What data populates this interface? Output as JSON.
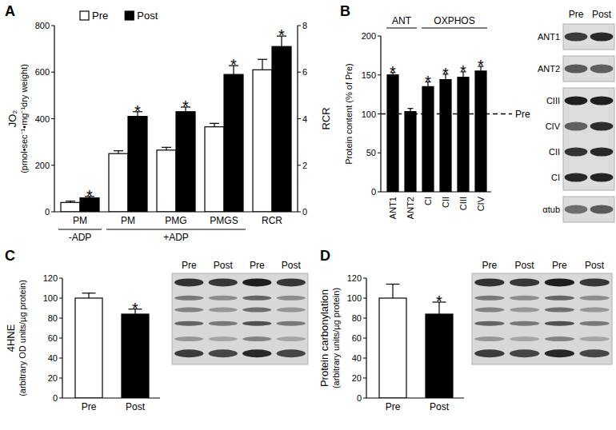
{
  "chart_data": [
    {
      "type": "bar",
      "title": "A",
      "categories": [
        "PM",
        "PM",
        "PMG",
        "PMGS",
        "RCR"
      ],
      "series": [
        {
          "name": "Pre",
          "color": "#ffffff",
          "values": [
            40,
            250,
            265,
            365,
            null
          ],
          "errors": [
            6,
            12,
            12,
            15,
            null
          ]
        },
        {
          "name": "Post",
          "color": "#000000",
          "values": [
            60,
            410,
            430,
            590,
            null
          ],
          "errors": [
            6,
            20,
            20,
            38,
            null
          ]
        },
        {
          "name": "Pre",
          "color": "#ffffff",
          "axis": "y2",
          "values": [
            null,
            null,
            null,
            null,
            6.1
          ],
          "errors": [
            null,
            null,
            null,
            null,
            0.45
          ]
        },
        {
          "name": "Post",
          "color": "#000000",
          "axis": "y2",
          "values": [
            null,
            null,
            null,
            null,
            7.1
          ],
          "errors": [
            null,
            null,
            null,
            null,
            0.45
          ]
        }
      ],
      "ylabel": [
        "JO₂",
        "(pmol•sec⁻¹•mg⁻¹dry weight)"
      ],
      "ylim": [
        0,
        800
      ],
      "yticks": [
        0,
        200,
        400,
        600,
        800
      ],
      "y2label": [
        "RCR"
      ],
      "y2lim": [
        0,
        8
      ],
      "y2ticks": [
        0,
        2,
        4,
        6,
        8
      ],
      "legend": "top-left",
      "annotations": [
        {
          "text": "*",
          "category": 0,
          "series": 1
        },
        {
          "text": "*",
          "category": 1,
          "series": 1
        },
        {
          "text": "*",
          "category": 2,
          "series": 1
        },
        {
          "text": "*",
          "category": 3,
          "series": 1
        },
        {
          "text": "*",
          "category": 4,
          "series": 3
        },
        {
          "text": "-ADP",
          "categories": [
            0,
            0
          ]
        },
        {
          "text": "+ADP",
          "categories": [
            1,
            3
          ]
        }
      ]
    },
    {
      "type": "bar",
      "title": "B",
      "categories": [
        "ANT1",
        "ANT2",
        "CI",
        "CII",
        "CIII",
        "CIV"
      ],
      "values": [
        150,
        103,
        135,
        144,
        147,
        155
      ],
      "errors": [
        3,
        4,
        6,
        7,
        7,
        6
      ],
      "color": "#000000",
      "ylabel": [
        "Protein content (% of Pre)"
      ],
      "ylim": [
        0,
        200
      ],
      "yticks": [
        0,
        50,
        100,
        150,
        200
      ],
      "annotations": [
        {
          "text": "*",
          "category": 0
        },
        {
          "text": "*",
          "category": 2
        },
        {
          "text": "*",
          "category": 3
        },
        {
          "text": "*",
          "category": 4
        },
        {
          "text": "*",
          "category": 5
        },
        {
          "text": "ANT",
          "categories": [
            0,
            1
          ]
        },
        {
          "text": "OXPHOS",
          "categories": [
            2,
            5
          ]
        },
        {
          "text": "Pre",
          "y": 100
        }
      ],
      "blot": {
        "columns": [
          "Pre",
          "Post"
        ],
        "rows": [
          "ANT1",
          "ANT2",
          "CIII",
          "CIV",
          "CII",
          "CI",
          "αtub"
        ]
      }
    },
    {
      "type": "bar",
      "title": "C",
      "categories": [
        "Pre",
        "Post"
      ],
      "values": [
        100,
        84
      ],
      "errors": [
        5,
        5
      ],
      "colors": [
        "#ffffff",
        "#000000"
      ],
      "ylabel": [
        "4HNE",
        "(arbitrary OD units/µg protein)"
      ],
      "ylim": [
        0,
        120
      ],
      "yticks": [
        0,
        20,
        40,
        60,
        80,
        100,
        120
      ],
      "annotations": [
        {
          "text": "*",
          "category": 1
        }
      ],
      "blot": {
        "columns": [
          "Pre",
          "Post",
          "Pre",
          "Post"
        ]
      }
    },
    {
      "type": "bar",
      "title": "D",
      "categories": [
        "Pre",
        "Post"
      ],
      "values": [
        100,
        84
      ],
      "errors": [
        14,
        12
      ],
      "colors": [
        "#ffffff",
        "#000000"
      ],
      "ylabel": [
        "Protein carbonylation",
        "(arbitrary units/µg protein)"
      ],
      "ylim": [
        0,
        120
      ],
      "yticks": [
        0,
        20,
        40,
        60,
        80,
        100,
        120
      ],
      "annotations": [
        {
          "text": "*",
          "category": 1
        }
      ],
      "blot": {
        "columns": [
          "Pre",
          "Post",
          "Pre",
          "Post"
        ]
      }
    }
  ]
}
